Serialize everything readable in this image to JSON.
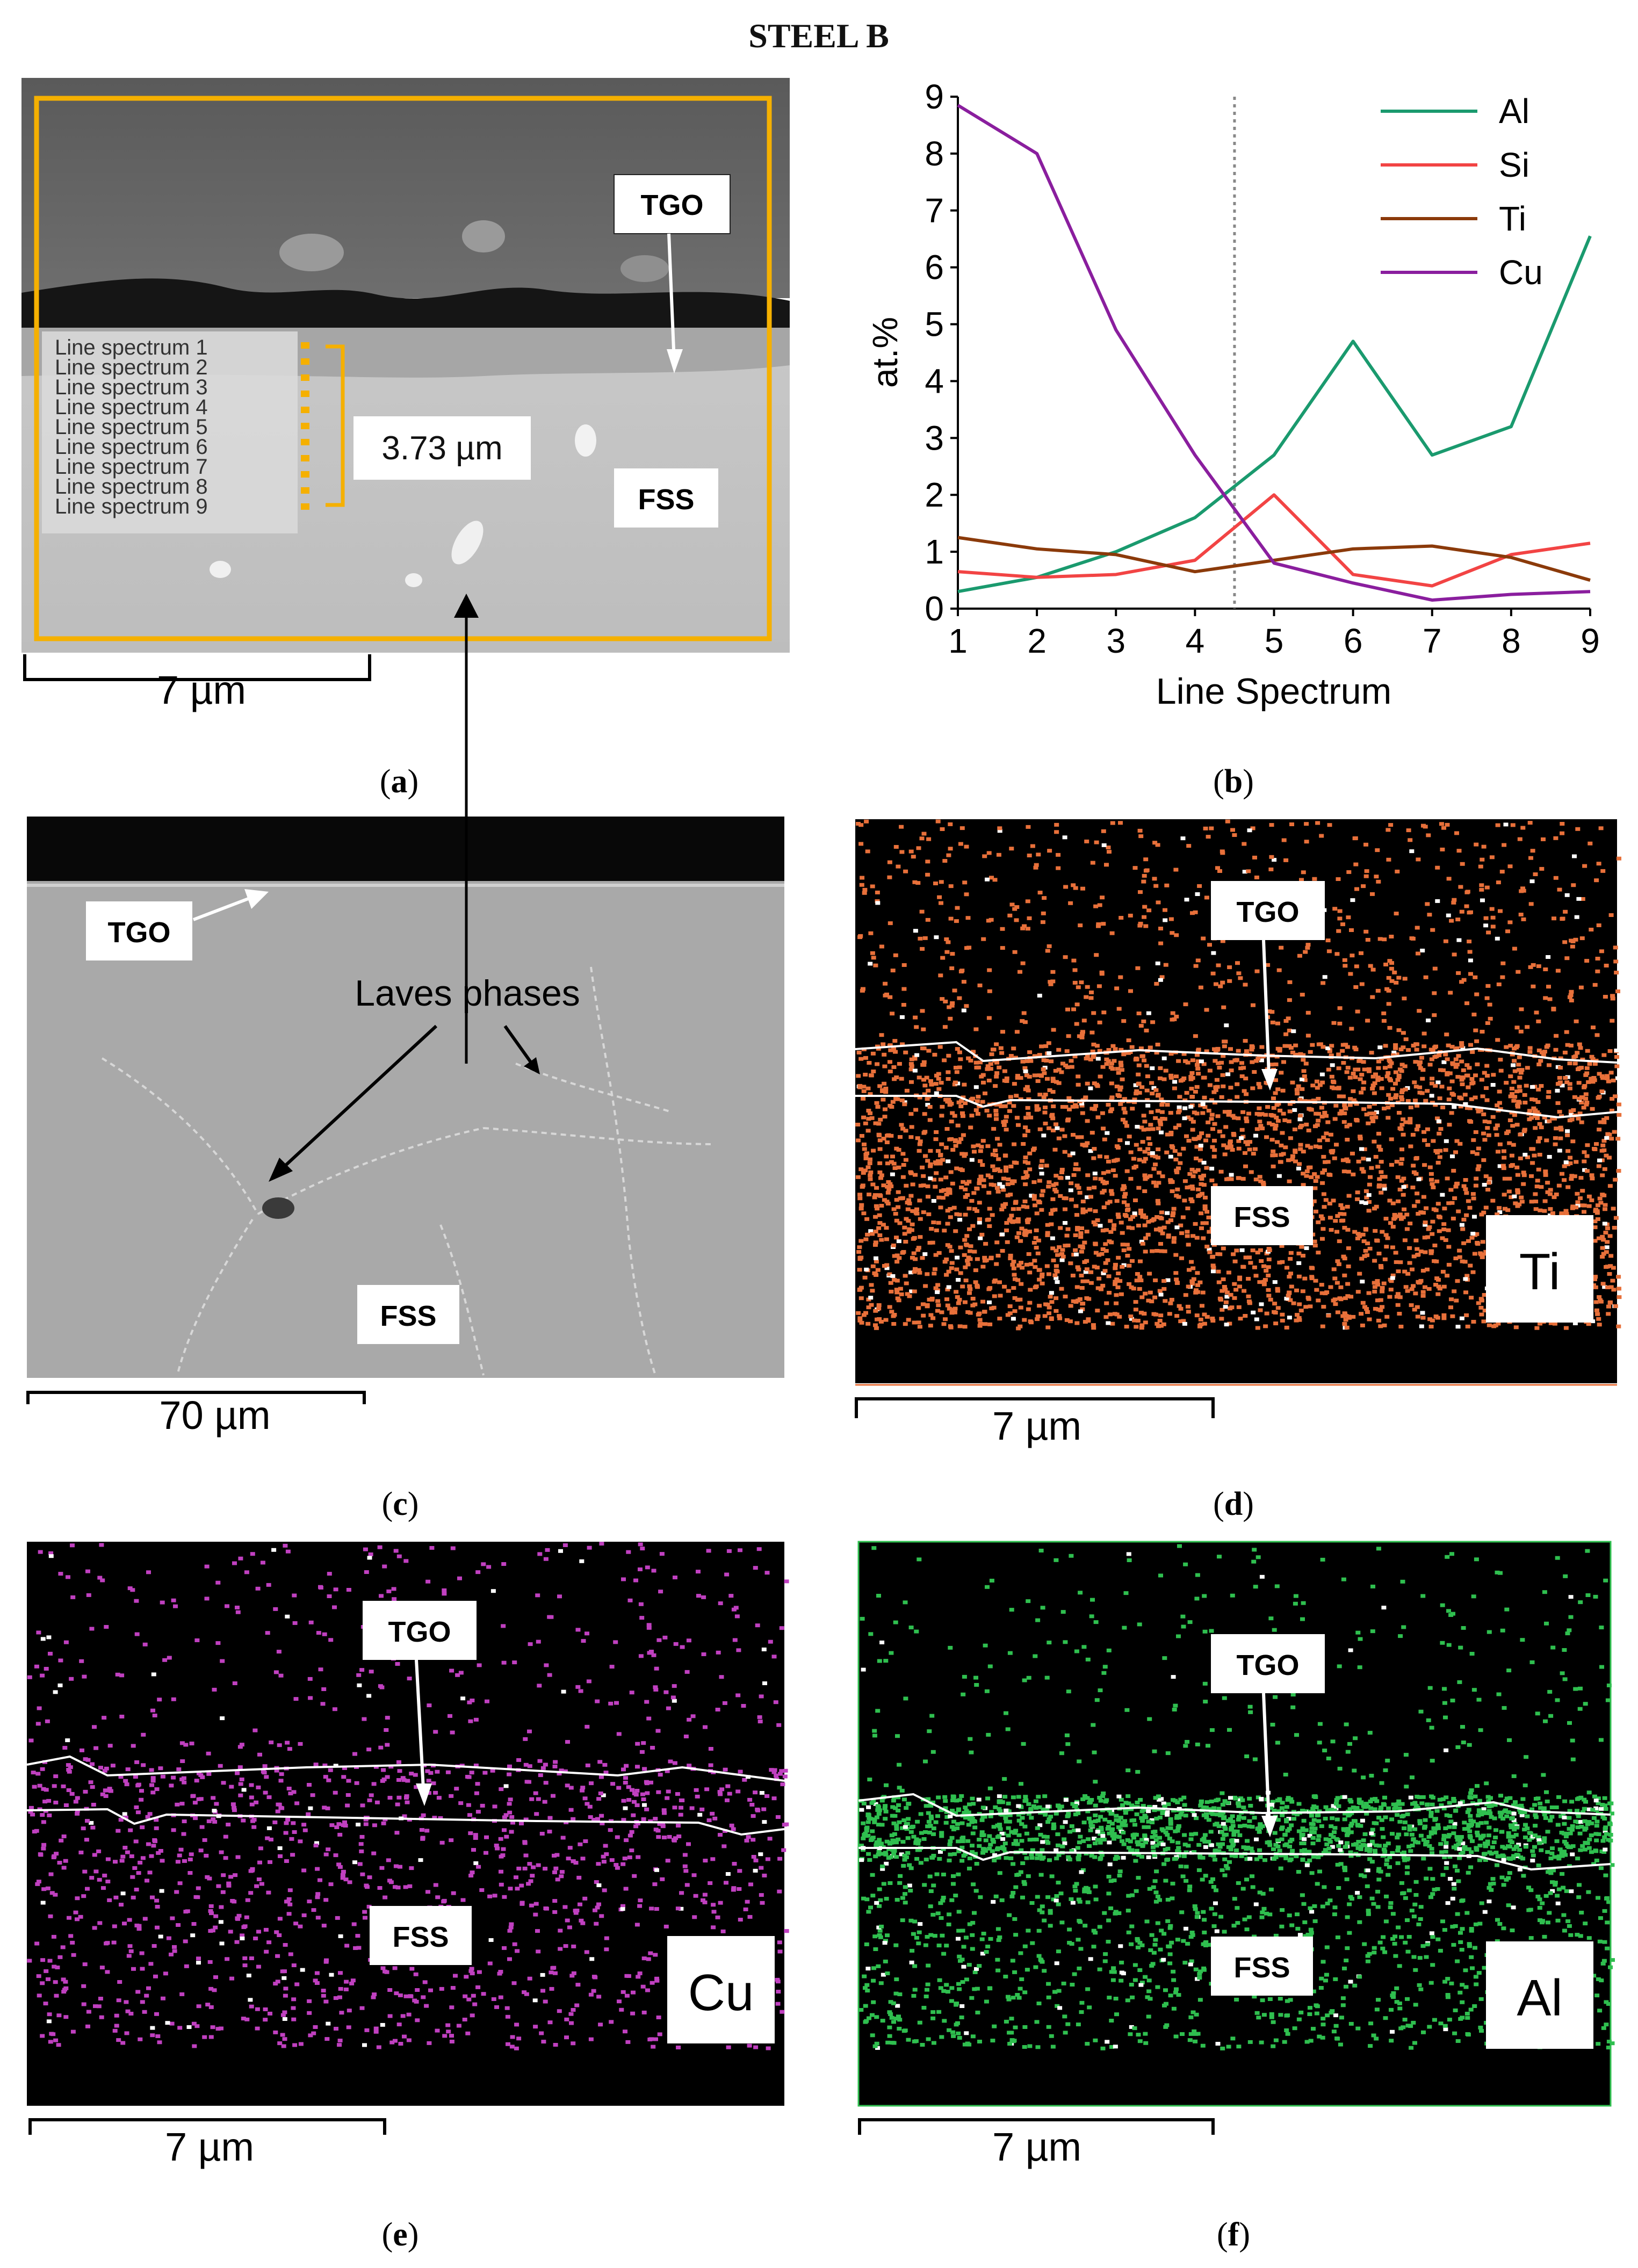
{
  "figure_title": "STEEL B",
  "panels": {
    "a": {
      "caption_letter": "a",
      "tgo_label": "TGO",
      "fss_label": "FSS",
      "thickness_label": "3.73 µm",
      "scale_label": "7 µm",
      "line_spectrum_labels": [
        "Line spectrum  1",
        "Line spectrum  2",
        "Line spectrum  3",
        "Line spectrum  4",
        "Line spectrum  5",
        "Line spectrum  6",
        "Line spectrum  7",
        "Line spectrum  8",
        "Line spectrum  9"
      ]
    },
    "b": {
      "caption_letter": "b"
    },
    "c": {
      "caption_letter": "c",
      "tgo_label": "TGO",
      "fss_label": "FSS",
      "laves_label": "Laves phases",
      "scale_label": "70 µm"
    },
    "d": {
      "caption_letter": "d",
      "tgo_label": "TGO",
      "fss_label": "FSS",
      "element_label": "Ti",
      "scale_label": "7 µm"
    },
    "e": {
      "caption_letter": "e",
      "tgo_label": "TGO",
      "fss_label": "FSS",
      "element_label": "Cu",
      "scale_label": "7 µm"
    },
    "f": {
      "caption_letter": "f",
      "tgo_label": "TGO",
      "fss_label": "FSS",
      "element_label": "Al",
      "scale_label": "7 µm"
    }
  },
  "colors": {
    "Al": "#1a9a6e",
    "Si": "#f24444",
    "Ti": "#8b3a0a",
    "Cu": "#8a1e9e",
    "highlight_box": "#f5b000",
    "ti_map": "#e8703a",
    "cu_map": "#c040c0",
    "al_map": "#2fbf4f"
  },
  "chart_data": {
    "type": "line",
    "xlabel": "Line Spectrum",
    "ylabel": "at.%",
    "x": [
      1,
      2,
      3,
      4,
      5,
      6,
      7,
      8,
      9
    ],
    "xlim": [
      1,
      9
    ],
    "ylim": [
      0,
      9
    ],
    "xticks": [
      "1",
      "2",
      "3",
      "4",
      "5",
      "6",
      "7",
      "8",
      "9"
    ],
    "yticks": [
      "0",
      "1",
      "2",
      "3",
      "4",
      "5",
      "6",
      "7",
      "8",
      "9"
    ],
    "reference_line_x": 4.5,
    "legend_position": "top-right",
    "series": [
      {
        "name": "Al",
        "values": [
          0.3,
          0.55,
          1.0,
          1.6,
          2.7,
          4.7,
          2.7,
          3.2,
          6.55
        ]
      },
      {
        "name": "Si",
        "values": [
          0.65,
          0.55,
          0.6,
          0.85,
          2.0,
          0.6,
          0.4,
          0.95,
          1.15
        ]
      },
      {
        "name": "Ti",
        "values": [
          1.25,
          1.05,
          0.95,
          0.65,
          0.85,
          1.05,
          1.1,
          0.9,
          0.5
        ]
      },
      {
        "name": "Cu",
        "values": [
          8.85,
          8.0,
          4.9,
          2.7,
          0.8,
          0.45,
          0.15,
          0.25,
          0.3
        ]
      }
    ]
  }
}
